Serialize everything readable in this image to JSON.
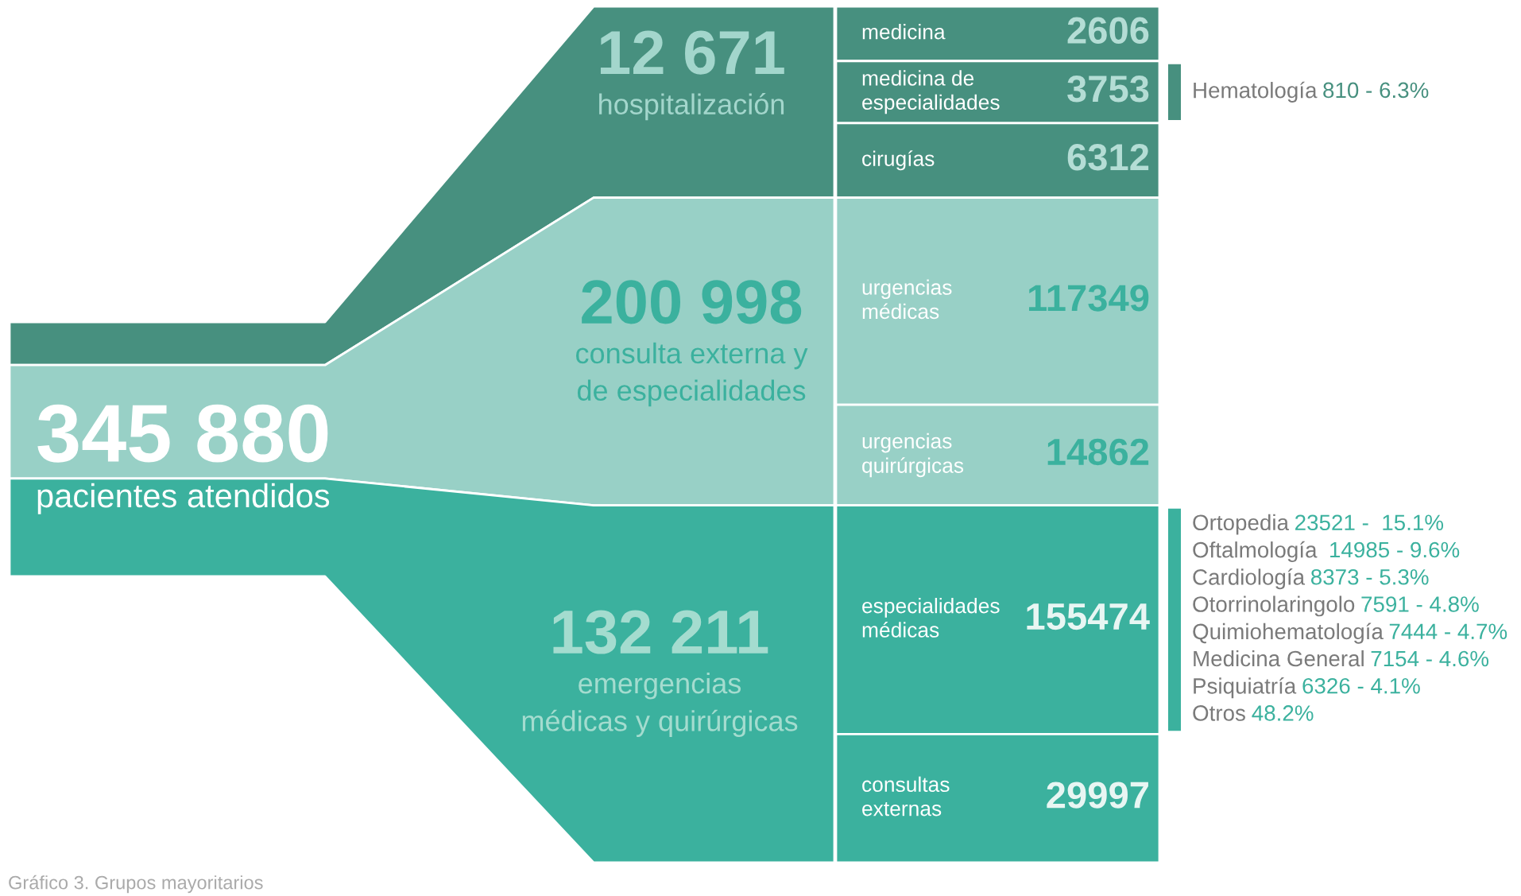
{
  "chart_data": [
    {
      "type": "other",
      "title": "345 880",
      "subtitle": "pacientes atendidos",
      "categories": [
        "hospitalización",
        "consulta externa y\nde especialidades",
        "emergencias\nmédicas y quirúrgicas"
      ],
      "values": [
        12671,
        200998,
        132211
      ],
      "value_labels": [
        "12 671",
        "200 998",
        "132 211"
      ],
      "colors": [
        "#47907f",
        "#98d0c6",
        "#3bb19e"
      ],
      "annotations": [
        "Gráfico 3. Grupos mayoritarios"
      ]
    },
    {
      "type": "other",
      "data_labels": true,
      "categories": [
        "medicina",
        "medicina de\nespecialidades",
        "cirugías",
        "urgencias\nmédicas",
        "urgencias\nquirúrgicas",
        "especialidades\nmédicas",
        "consultas\nexternas"
      ],
      "series": [
        {
          "color": "#47907f",
          "values": [
            2606,
            3753,
            6312,
            null,
            null,
            null,
            null
          ]
        },
        {
          "color": "#98d0c6",
          "values": [
            null,
            null,
            null,
            117349,
            14862,
            null,
            null
          ]
        },
        {
          "color": "#3bb19e",
          "values": [
            null,
            null,
            null,
            null,
            null,
            155474,
            29997
          ]
        }
      ]
    },
    {
      "type": "other",
      "categories": [
        "Hematología",
        "Ortopedia",
        "Oftalmología",
        "Cardiología",
        "Otorrinolaringolo",
        "Quimiohematología",
        "Medicina General",
        "Psiquiatría",
        "Otros"
      ],
      "series": [
        {
          "color": "#47907f",
          "values": [
            810,
            null,
            null,
            null,
            null,
            null,
            null,
            null,
            null
          ],
          "value_labels": [
            "810 - 6.3%",
            null,
            null,
            null,
            null,
            null,
            null,
            null,
            null
          ]
        },
        {
          "color": "#3bb19e",
          "values": [
            null,
            23521,
            14985,
            8373,
            7591,
            7444,
            7154,
            6326,
            null
          ],
          "value_labels": [
            null,
            "23521 -  15.1%",
            " 14985 - 9.6%",
            "8373 - 5.3%",
            "7591 - 4.8%",
            "7444 - 4.7%",
            "7154 - 4.6%",
            "6326 - 4.1%",
            "48.2%"
          ]
        }
      ]
    }
  ]
}
